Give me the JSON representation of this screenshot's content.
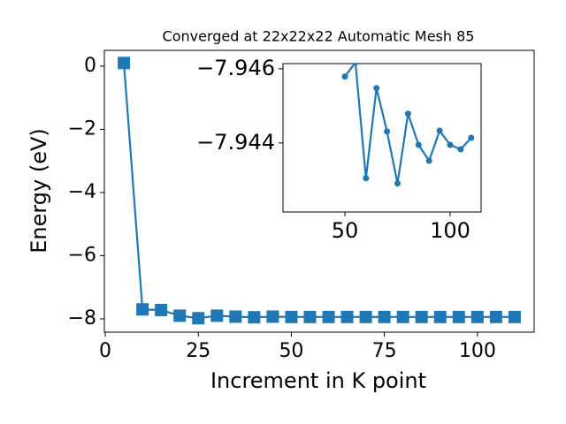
{
  "chart_data": [
    {
      "type": "line",
      "title": "Converged at 22x22x22 Automatic Mesh 85",
      "xlabel": "Increment in K point",
      "ylabel": "Energy (eV)",
      "x": [
        5,
        10,
        15,
        20,
        25,
        30,
        35,
        40,
        45,
        50,
        55,
        60,
        65,
        70,
        75,
        80,
        85,
        90,
        95,
        100,
        105,
        110
      ],
      "values": [
        0.1,
        -7.7,
        -7.72,
        -7.9,
        -7.98,
        -7.9,
        -7.93,
        -7.95,
        -7.93,
        -7.94,
        -7.94,
        -7.94,
        -7.94,
        -7.94,
        -7.94,
        -7.94,
        -7.94,
        -7.94,
        -7.94,
        -7.94,
        -7.94,
        -7.94
      ],
      "color": "#1f77b4",
      "marker": "square",
      "xlim": [
        -0.25,
        115.25
      ],
      "ylim": [
        -8.42,
        0.5
      ],
      "xticks": [
        0,
        25,
        50,
        75,
        100
      ],
      "yticks": [
        0,
        {
          "value": -2,
          "label": "−2"
        },
        {
          "value": -4,
          "label": "−4"
        },
        {
          "value": -6,
          "label": "−6"
        },
        {
          "value": -8,
          "label": "−8"
        }
      ]
    },
    {
      "type": "line",
      "x": [
        50,
        55,
        60,
        65,
        70,
        75,
        80,
        85,
        90,
        95,
        100,
        105,
        110
      ],
      "values": [
        -7.94579,
        -7.94617,
        -7.94305,
        -7.94548,
        -7.94431,
        -7.94291,
        -7.94479,
        -7.94395,
        -7.94352,
        -7.94433,
        -7.94395,
        -7.94383,
        -7.94414
      ],
      "color": "#1f77b4",
      "marker": "circle",
      "xlim": [
        20.6,
        114.7
      ],
      "ylim": [
        -7.94214,
        -7.94614
      ],
      "xticks": [
        50,
        100
      ],
      "yticks": [
        {
          "value": -7.946,
          "label": "−7.946"
        },
        {
          "value": -7.944,
          "label": "−7.944"
        }
      ]
    }
  ]
}
